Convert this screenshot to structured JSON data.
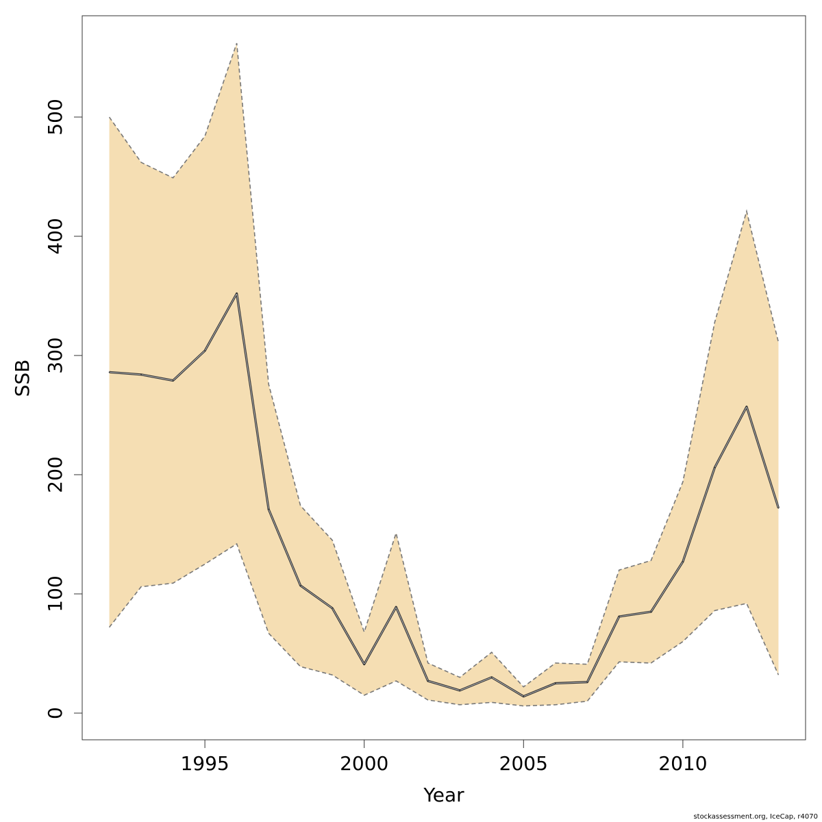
{
  "chart_data": {
    "type": "area",
    "title": "",
    "xlabel": "Year",
    "ylabel": "SSB",
    "x": [
      1992,
      1993,
      1994,
      1995,
      1996,
      1997,
      1998,
      1999,
      2000,
      2001,
      2002,
      2003,
      2004,
      2005,
      2006,
      2007,
      2008,
      2009,
      2010,
      2011,
      2012,
      2013
    ],
    "series": [
      {
        "values": [
          286,
          284,
          279,
          304,
          352,
          171,
          107,
          88,
          41,
          89,
          27,
          19,
          30,
          14,
          25,
          26,
          81,
          85,
          127,
          206,
          257,
          172
        ]
      }
    ],
    "band_upper": [
      500,
      462,
      449,
      484,
      562,
      276,
      174,
      145,
      68,
      151,
      42,
      30,
      51,
      22,
      42,
      41,
      120,
      128,
      194,
      328,
      421,
      311
    ],
    "band_lower": [
      72,
      106,
      109,
      125,
      142,
      67,
      39,
      32,
      15,
      27,
      11,
      7,
      9,
      6,
      7,
      10,
      43,
      42,
      60,
      86,
      92,
      32
    ],
    "xlim": [
      1991.15,
      2013.85
    ],
    "ylim": [
      -22.4,
      585
    ],
    "xticks": [
      "1995",
      "2000",
      "2005",
      "2010"
    ],
    "yticks": [
      "0",
      "100",
      "200",
      "300",
      "400",
      "500"
    ],
    "grid": false,
    "colors": {
      "band": "#f5deb3",
      "line": "#333333",
      "band_edge": "#777777"
    }
  },
  "footer": "stockassessment.org, IceCap, r4070"
}
